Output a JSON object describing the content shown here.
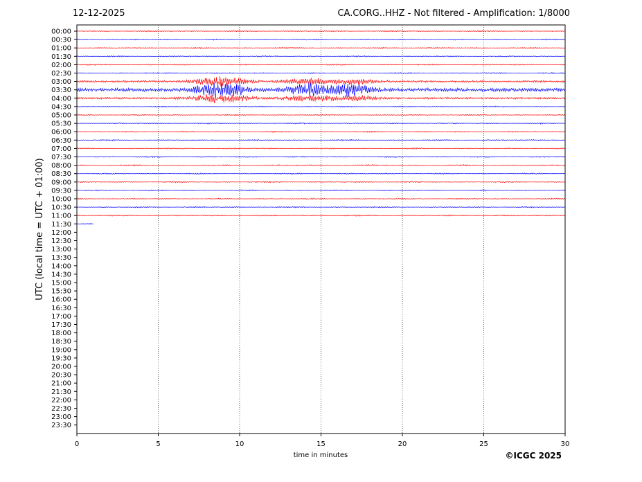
{
  "header": {
    "date": "12-12-2025",
    "title": "CA.CORG..HHZ - Not filtered - Amplification: 1/8000"
  },
  "footer": {
    "copyright": "©ICGC 2025"
  },
  "chart_data": {
    "type": "line",
    "title": "CA.CORG..HHZ - Not filtered - Amplification: 1/8000",
    "subtitle": "12-12-2025",
    "xlabel": "time in minutes",
    "ylabel": "UTC (local time = UTC + 01:00)",
    "xlim": [
      0,
      30
    ],
    "x_ticks": [
      0,
      5,
      10,
      15,
      20,
      25,
      30
    ],
    "x_tick_labels": [
      "0",
      "5",
      "10",
      "15",
      "20",
      "25",
      "30"
    ],
    "grid": "vertical dotted at x ticks",
    "row_labels": [
      "00:00",
      "00:30",
      "01:00",
      "01:30",
      "02:00",
      "02:30",
      "03:00",
      "03:30",
      "04:00",
      "04:30",
      "05:00",
      "05:30",
      "06:00",
      "06:30",
      "07:00",
      "07:30",
      "08:00",
      "08:30",
      "09:00",
      "09:30",
      "10:00",
      "10:30",
      "11:00",
      "11:30",
      "12:00",
      "12:30",
      "13:00",
      "13:30",
      "14:00",
      "14:30",
      "15:00",
      "15:30",
      "16:00",
      "16:30",
      "17:00",
      "17:30",
      "18:00",
      "18:30",
      "19:00",
      "19:30",
      "20:00",
      "20:30",
      "21:00",
      "21:30",
      "22:00",
      "22:30",
      "23:00",
      "23:30"
    ],
    "colors": [
      "#ff0000",
      "#0000ff"
    ],
    "recorded_rows": 24,
    "last_row_end_minute": 1.0,
    "quiet_amplitude": 0.08,
    "event": {
      "rows": [
        "03:00",
        "03:30",
        "04:00"
      ],
      "strong_row": "03:30",
      "peak_minutes": [
        8.5,
        9.3,
        14.2,
        16.9
      ],
      "peak_amplitude": 0.9
    }
  }
}
